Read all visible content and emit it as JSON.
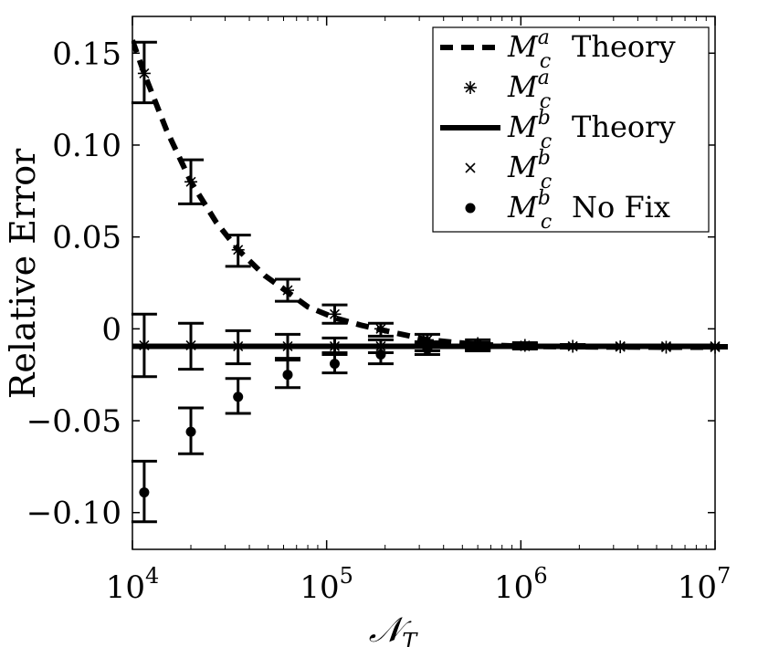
{
  "chart_data": {
    "type": "scatter",
    "title": "",
    "xlabel": "𝒩",
    "xlabel_subscript": "T",
    "ylabel": "Relative Error",
    "xscale": "log",
    "xlim": [
      10000,
      10000000
    ],
    "ylim": [
      -0.12,
      0.17
    ],
    "grid": false,
    "legend_position": "top-right",
    "x_ticks": [
      {
        "value": 10000,
        "base": "10",
        "exp": "4"
      },
      {
        "value": 100000,
        "base": "10",
        "exp": "5"
      },
      {
        "value": 1000000,
        "base": "10",
        "exp": "6"
      },
      {
        "value": 10000000,
        "base": "10",
        "exp": "7"
      }
    ],
    "y_ticks": [
      {
        "value": 0.15,
        "label": "0.15"
      },
      {
        "value": 0.1,
        "label": "0.10"
      },
      {
        "value": 0.05,
        "label": "0.05"
      },
      {
        "value": 0.0,
        "label": "0"
      },
      {
        "value": -0.05,
        "label": "−0.05"
      },
      {
        "value": -0.1,
        "label": "−0.10"
      }
    ],
    "series": [
      {
        "name": "M_c^a Theory",
        "legend_label": "Theory",
        "math": {
          "base": "M",
          "sub": "c",
          "sup": "a"
        },
        "style": "dashed-line",
        "x": [
          10000,
          11500,
          15000,
          20000,
          27000,
          35000,
          48000,
          63000,
          80000,
          110000,
          150000,
          200000,
          330000,
          600000,
          1000000,
          1800000,
          3300000,
          5800000,
          10000000
        ],
        "y": [
          0.157,
          0.139,
          0.108,
          0.08,
          0.058,
          0.043,
          0.029,
          0.02,
          0.012,
          0.006,
          0.002,
          -0.001,
          -0.006,
          -0.0085,
          -0.0095,
          -0.0098,
          -0.0099,
          -0.01,
          -0.01
        ]
      },
      {
        "name": "M_c^a",
        "legend_label": "",
        "math": {
          "base": "M",
          "sub": "c",
          "sup": "a"
        },
        "style": "asterisk",
        "x": [
          11500,
          20000,
          35000,
          63000,
          110000,
          190000,
          330000,
          600000,
          1050000,
          1850000,
          3250000,
          5600000,
          10000000
        ],
        "y": [
          0.139,
          0.08,
          0.043,
          0.021,
          0.008,
          0.0,
          -0.006,
          -0.008,
          -0.009,
          -0.0095,
          -0.0098,
          -0.01,
          -0.01
        ],
        "err_low": [
          0.123,
          0.068,
          0.034,
          0.015,
          0.003,
          -0.004,
          -0.009,
          -0.0105,
          -0.0105,
          -0.0105,
          -0.0105,
          -0.0105,
          -0.0105
        ],
        "err_high": [
          0.156,
          0.092,
          0.051,
          0.027,
          0.013,
          0.003,
          -0.003,
          -0.006,
          -0.0075,
          -0.0085,
          -0.009,
          -0.0095,
          -0.0095
        ]
      },
      {
        "name": "M_c^b Theory",
        "legend_label": "Theory",
        "math": {
          "base": "M",
          "sub": "c",
          "sup": "b"
        },
        "style": "solid-line",
        "x": [
          10000,
          10000000
        ],
        "y": [
          -0.0095,
          -0.0095
        ]
      },
      {
        "name": "M_c^b",
        "legend_label": "",
        "math": {
          "base": "M",
          "sub": "c",
          "sup": "b"
        },
        "style": "cross",
        "x": [
          11500,
          20000,
          35000,
          63000,
          110000,
          190000,
          330000,
          600000,
          1050000,
          1850000,
          3250000,
          5600000,
          10000000
        ],
        "y": [
          -0.009,
          -0.009,
          -0.0095,
          -0.0095,
          -0.0095,
          -0.0095,
          -0.0095,
          -0.0095,
          -0.0095,
          -0.0095,
          -0.0095,
          -0.0095,
          -0.0095
        ],
        "err_low": [
          -0.026,
          -0.022,
          -0.019,
          -0.016,
          -0.014,
          -0.013,
          -0.012,
          -0.0115,
          -0.011,
          -0.0105,
          -0.0105,
          -0.0103,
          -0.0102
        ],
        "err_high": [
          0.008,
          0.003,
          -0.001,
          -0.003,
          -0.005,
          -0.006,
          -0.007,
          -0.0075,
          -0.008,
          -0.0085,
          -0.0088,
          -0.009,
          -0.009
        ]
      },
      {
        "name": "M_c^b No Fix",
        "legend_label": "No Fix",
        "math": {
          "base": "M",
          "sub": "c",
          "sup": "b"
        },
        "style": "dot",
        "x": [
          11500,
          20000,
          35000,
          63000,
          110000,
          190000,
          330000,
          600000
        ],
        "y": [
          -0.089,
          -0.056,
          -0.037,
          -0.025,
          -0.019,
          -0.014,
          -0.011,
          -0.01
        ],
        "err_low": [
          -0.105,
          -0.068,
          -0.046,
          -0.032,
          -0.024,
          -0.019,
          -0.014,
          -0.012
        ],
        "err_high": [
          -0.072,
          -0.043,
          -0.027,
          -0.017,
          -0.013,
          -0.01,
          -0.008,
          -0.0075
        ]
      }
    ]
  }
}
